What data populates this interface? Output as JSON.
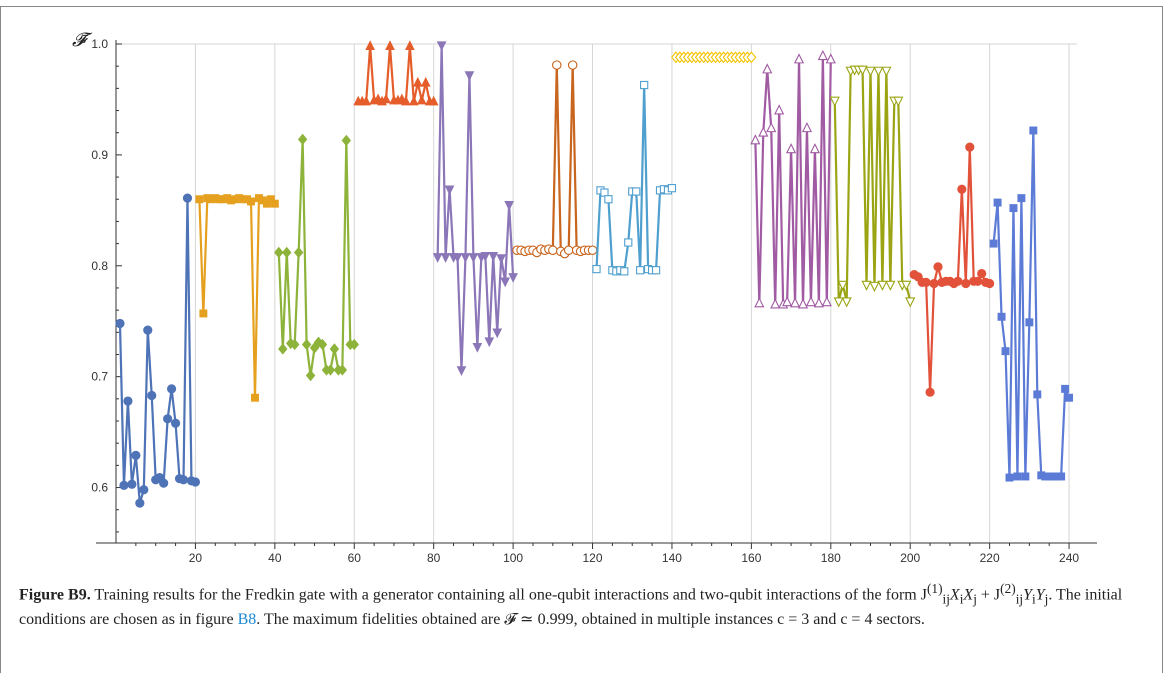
{
  "figure": {
    "label": "Figure B9.",
    "caption_part1": "Training results for the Fredkin gate with a generator containing all one-qubit interactions and two-qubit interactions of the form J",
    "caption_sup1": "(1)",
    "caption_sub1": "ij",
    "caption_part2": "X",
    "caption_sub2": "i",
    "caption_part3": "X",
    "caption_sub3": "j",
    "caption_part4": " + J",
    "caption_sup4": "(2)",
    "caption_sub4": "ij",
    "caption_part5": "Y",
    "caption_sub5": "i",
    "caption_part6": "Y",
    "caption_sub6": "j",
    "caption_part7": ". The initial conditions are chosen as in figure ",
    "caption_ref": "B8",
    "caption_part8": ". The maximum fidelities obtained are 𝓕 ≃ 0.999, obtained in multiple instances c = 3 and c = 4 sectors."
  },
  "chart_data": {
    "type": "line",
    "xlabel": "",
    "ylabel": "𝓕̄",
    "xlim": [
      0,
      242
    ],
    "ylim": [
      0.55,
      1.0
    ],
    "x_ticks": [
      20,
      40,
      60,
      80,
      100,
      120,
      140,
      160,
      180,
      200,
      220,
      240
    ],
    "y_ticks": [
      0.6,
      0.7,
      0.8,
      0.9,
      1.0
    ],
    "y_tick_labels": [
      "0.6",
      "0.7",
      "0.8",
      "0.9",
      "1.0"
    ],
    "grid": "vertical",
    "series": [
      {
        "x_start": 1,
        "color": "#4e73b6",
        "marker": "circle-filled",
        "values": [
          0.748,
          0.602,
          0.678,
          0.603,
          0.629,
          0.586,
          0.598,
          0.742,
          0.683,
          0.607,
          0.609,
          0.604,
          0.662,
          0.689,
          0.658,
          0.608,
          0.607,
          0.861,
          0.606,
          0.605
        ]
      },
      {
        "x_start": 21,
        "color": "#e6a020",
        "marker": "square-filled",
        "values": [
          0.86,
          0.757,
          0.861,
          0.86,
          0.861,
          0.86,
          0.86,
          0.861,
          0.859,
          0.86,
          0.861,
          0.86,
          0.86,
          0.858,
          0.681,
          0.861,
          0.859,
          0.856,
          0.86,
          0.856
        ]
      },
      {
        "x_start": 41,
        "color": "#8db33a",
        "marker": "diamond-filled",
        "values": [
          0.812,
          0.725,
          0.812,
          0.73,
          0.729,
          0.812,
          0.914,
          0.729,
          0.701,
          0.726,
          0.731,
          0.729,
          0.706,
          0.706,
          0.725,
          0.706,
          0.706,
          0.913,
          0.729,
          0.729
        ]
      },
      {
        "x_start": 61,
        "color": "#e55d2a",
        "marker": "triangle-up-filled",
        "values": [
          0.948,
          0.948,
          0.948,
          0.998,
          0.949,
          0.95,
          0.948,
          0.95,
          0.998,
          0.949,
          0.949,
          0.95,
          0.948,
          0.998,
          0.948,
          0.965,
          0.949,
          0.965,
          0.948,
          0.948
        ]
      },
      {
        "x_start": 81,
        "color": "#8b76b8",
        "marker": "triangle-down-filled",
        "values": [
          0.808,
          0.999,
          0.808,
          0.869,
          0.808,
          0.808,
          0.706,
          0.808,
          0.972,
          0.808,
          0.727,
          0.808,
          0.809,
          0.732,
          0.809,
          0.74,
          0.807,
          0.786,
          0.855,
          0.79
        ]
      },
      {
        "x_start": 101,
        "color": "#c8651e",
        "marker": "circle-open",
        "values": [
          0.814,
          0.814,
          0.813,
          0.814,
          0.814,
          0.812,
          0.815,
          0.814,
          0.815,
          0.814,
          0.981,
          0.813,
          0.811,
          0.814,
          0.981,
          0.814,
          0.813,
          0.814,
          0.814,
          0.814
        ]
      },
      {
        "x_start": 121,
        "color": "#4f9fcf",
        "marker": "square-open",
        "values": [
          0.797,
          0.868,
          0.866,
          0.86,
          0.796,
          0.795,
          0.796,
          0.795,
          0.821,
          0.867,
          0.867,
          0.796,
          0.963,
          0.797,
          0.796,
          0.796,
          0.868,
          0.869,
          0.868,
          0.87
        ]
      },
      {
        "x_start": 161,
        "color": "#a05ba3",
        "marker": "triangle-up-open",
        "values": [
          0.913,
          0.766,
          0.92,
          0.977,
          0.924,
          0.765,
          0.94,
          0.765,
          0.767,
          0.905,
          0.766,
          0.986,
          0.765,
          0.924,
          0.767,
          0.905,
          0.766,
          0.989,
          0.767,
          0.986
        ]
      },
      {
        "x_start": 181,
        "color": "#9ba514",
        "marker": "triangle-down-open",
        "values": [
          0.949,
          0.768,
          0.783,
          0.768,
          0.976,
          0.977,
          0.977,
          0.977,
          0.783,
          0.976,
          0.782,
          0.976,
          0.783,
          0.976,
          0.783,
          0.949,
          0.949,
          0.783,
          0.783,
          0.768
        ]
      },
      {
        "x_start": 201,
        "color": "#e2523a",
        "marker": "circle-filled",
        "values": [
          0.792,
          0.79,
          0.785,
          0.785,
          0.686,
          0.784,
          0.799,
          0.785,
          0.786,
          0.786,
          0.784,
          0.786,
          0.869,
          0.784,
          0.907,
          0.786,
          0.786,
          0.793,
          0.785,
          0.784
        ]
      },
      {
        "x_start": 221,
        "color": "#5b7bd6",
        "marker": "square-filled",
        "values": [
          0.82,
          0.857,
          0.754,
          0.723,
          0.609,
          0.852,
          0.61,
          0.861,
          0.61,
          0.749,
          0.922,
          0.684,
          0.611,
          0.61,
          0.61,
          0.61,
          0.61,
          0.61,
          0.689,
          0.681
        ]
      }
    ],
    "flat_series": {
      "x_start": 141,
      "x_end": 160,
      "value": 0.988,
      "color": "#f3c200",
      "marker": "diamond-open"
    }
  }
}
